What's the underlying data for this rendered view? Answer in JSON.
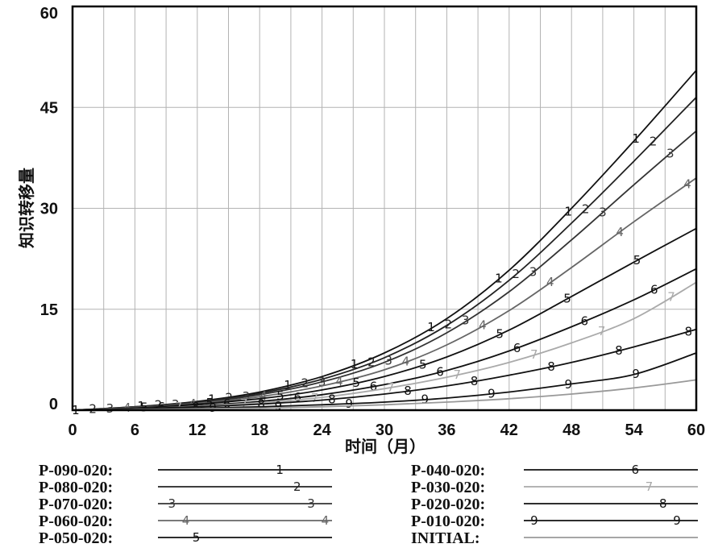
{
  "chart_data": {
    "type": "line",
    "title": "",
    "xlabel": "时间（月）",
    "ylabel": "知识转移量",
    "xlim": [
      0,
      60
    ],
    "ylim": [
      0,
      60
    ],
    "x_ticks": [
      "0",
      "6",
      "12",
      "18",
      "24",
      "30",
      "36",
      "42",
      "48",
      "54",
      "60"
    ],
    "y_ticks": [
      "0",
      "15",
      "30",
      "45",
      "60"
    ],
    "grid": true,
    "x": [
      0,
      6,
      12,
      18,
      24,
      30,
      36,
      42,
      48,
      54,
      60
    ],
    "series": [
      {
        "name": "P-090-020",
        "marker": "1",
        "color": "#111111",
        "values": [
          0,
          0.5,
          1.3,
          2.7,
          5.0,
          8.5,
          13.6,
          20.8,
          30.0,
          40.0,
          50.5
        ]
      },
      {
        "name": "P-080-020",
        "marker": "2",
        "color": "#222222",
        "values": [
          0,
          0.5,
          1.2,
          2.5,
          4.6,
          7.8,
          12.6,
          19.3,
          27.8,
          37.0,
          46.5
        ]
      },
      {
        "name": "P-070-020",
        "marker": "3",
        "color": "#333333",
        "values": [
          0,
          0.4,
          1.1,
          2.3,
          4.2,
          7.1,
          11.5,
          17.6,
          25.3,
          33.5,
          41.5
        ]
      },
      {
        "name": "P-060-020",
        "marker": "4",
        "color": "#666666",
        "values": [
          0,
          0.4,
          1.0,
          2.0,
          3.6,
          6.0,
          9.7,
          14.8,
          21.2,
          28.0,
          34.5
        ]
      },
      {
        "name": "P-050-020",
        "marker": "5",
        "color": "#111111",
        "values": [
          0,
          0.3,
          0.9,
          1.7,
          3.0,
          5.0,
          7.9,
          11.9,
          16.9,
          22.0,
          27.0
        ]
      },
      {
        "name": "P-040-020",
        "marker": "6",
        "color": "#111111",
        "values": [
          0,
          0.3,
          0.7,
          1.3,
          2.3,
          3.8,
          5.9,
          8.8,
          12.4,
          16.4,
          21.0
        ]
      },
      {
        "name": "P-030-020",
        "marker": "7",
        "color": "#aaaaaa",
        "values": [
          0,
          0.2,
          0.6,
          1.1,
          1.9,
          3.2,
          4.9,
          7.1,
          10.0,
          13.6,
          19.0
        ]
      },
      {
        "name": "P-020-020",
        "marker": "8",
        "color": "#111111",
        "values": [
          0,
          0.2,
          0.5,
          0.9,
          1.5,
          2.4,
          3.6,
          5.2,
          7.1,
          9.4,
          12.0
        ]
      },
      {
        "name": "P-010-020",
        "marker": "9",
        "color": "#111111",
        "values": [
          0,
          0.1,
          0.3,
          0.5,
          0.8,
          1.2,
          1.8,
          2.7,
          3.9,
          5.3,
          8.5
        ]
      },
      {
        "name": "INITIAL",
        "marker": "",
        "color": "#999999",
        "values": [
          0,
          0.1,
          0.2,
          0.3,
          0.5,
          0.8,
          1.2,
          1.7,
          2.4,
          3.3,
          4.5
        ]
      }
    ],
    "legend": [
      {
        "label": "P-090-020:",
        "marker": "1"
      },
      {
        "label": "P-080-020:",
        "marker": "2"
      },
      {
        "label": "P-070-020:",
        "marker": "3"
      },
      {
        "label": "P-060-020:",
        "marker": "4"
      },
      {
        "label": "P-050-020:",
        "marker": "5"
      },
      {
        "label": "P-040-020:",
        "marker": "6"
      },
      {
        "label": "P-030-020:",
        "marker": "7"
      },
      {
        "label": "P-020-020:",
        "marker": "8"
      },
      {
        "label": "P-010-020:",
        "marker": "9"
      },
      {
        "label": "INITIAL:",
        "marker": ""
      }
    ],
    "legend_placement": "bottom"
  }
}
